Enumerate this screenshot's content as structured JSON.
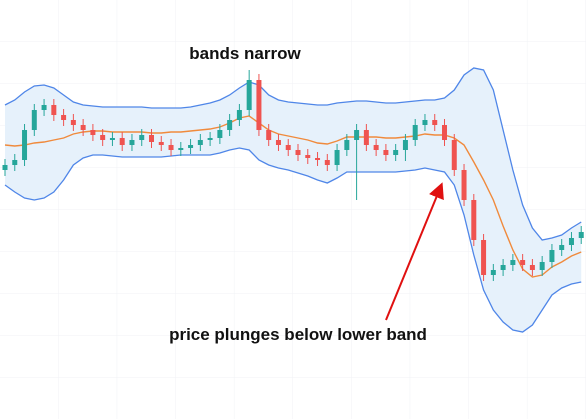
{
  "chart_data": {
    "type": "candlestick",
    "annotations": [
      {
        "text": "bands narrow"
      },
      {
        "text": "price plunges below lower band"
      }
    ],
    "ylim": [
      0,
      420
    ],
    "up_color": "#26a69a",
    "down_color": "#ef5350",
    "open": [
      250,
      255,
      260,
      290,
      310,
      315,
      305,
      300,
      295,
      290,
      285,
      280,
      282,
      275,
      280,
      285,
      278,
      275,
      270,
      272,
      275,
      280,
      282,
      290,
      300,
      310,
      340,
      290,
      280,
      275,
      270,
      265,
      262,
      260,
      255,
      270,
      280,
      290,
      275,
      270,
      265,
      270,
      280,
      295,
      300,
      295,
      280,
      250,
      220,
      180,
      145,
      150,
      155,
      160,
      155,
      150,
      158,
      170,
      175,
      182
    ],
    "high": [
      261,
      266,
      296,
      316,
      321,
      321,
      311,
      306,
      301,
      296,
      291,
      288,
      288,
      286,
      291,
      291,
      284,
      281,
      278,
      281,
      286,
      288,
      296,
      306,
      316,
      350,
      346,
      296,
      286,
      281,
      276,
      271,
      268,
      266,
      276,
      286,
      296,
      296,
      281,
      276,
      276,
      286,
      301,
      306,
      306,
      301,
      286,
      256,
      226,
      186,
      156,
      161,
      166,
      166,
      161,
      164,
      176,
      181,
      188,
      194
    ],
    "low": [
      244,
      249,
      254,
      284,
      304,
      299,
      294,
      289,
      284,
      279,
      274,
      274,
      269,
      269,
      274,
      272,
      269,
      264,
      264,
      266,
      269,
      274,
      276,
      284,
      294,
      304,
      284,
      274,
      269,
      264,
      259,
      256,
      254,
      249,
      249,
      264,
      220,
      269,
      264,
      259,
      259,
      259,
      274,
      289,
      289,
      274,
      244,
      214,
      174,
      139,
      139,
      144,
      149,
      149,
      144,
      144,
      152,
      164,
      169,
      176
    ],
    "close": [
      255,
      260,
      290,
      310,
      315,
      305,
      300,
      295,
      290,
      285,
      280,
      282,
      275,
      280,
      285,
      278,
      275,
      270,
      272,
      275,
      280,
      282,
      290,
      300,
      310,
      340,
      290,
      280,
      275,
      270,
      265,
      262,
      260,
      255,
      270,
      280,
      290,
      275,
      270,
      265,
      270,
      280,
      295,
      300,
      295,
      280,
      250,
      220,
      180,
      145,
      150,
      155,
      160,
      155,
      150,
      158,
      170,
      175,
      182,
      188
    ],
    "bands": {
      "fill": "#e6f1fb",
      "upper": {
        "color": "#4f86e8",
        "values": [
          315,
          320,
          328,
          334,
          335,
          332,
          325,
          318,
          315,
          314,
          313,
          313,
          313,
          313,
          313,
          312,
          312,
          312,
          312,
          313,
          315,
          317,
          320,
          325,
          332,
          338,
          335,
          325,
          320,
          318,
          317,
          316,
          315,
          315,
          317,
          318,
          319,
          319,
          318,
          317,
          317,
          318,
          319,
          320,
          320,
          322,
          330,
          345,
          352,
          350,
          330,
          290,
          250,
          215,
          192,
          180,
          182,
          185,
          192,
          198
        ]
      },
      "middle": {
        "color": "#f08a3c",
        "values": [
          275,
          274,
          275,
          277,
          278,
          280,
          282,
          286,
          288,
          289,
          289,
          288,
          288,
          288,
          288,
          287,
          287,
          288,
          288,
          289,
          290,
          291,
          293,
          297,
          302,
          304,
          297,
          290,
          286,
          284,
          282,
          280,
          277,
          276,
          279,
          283,
          283,
          283,
          283,
          282,
          282,
          283,
          284,
          286,
          285,
          285,
          282,
          275,
          258,
          240,
          220,
          194,
          170,
          151,
          143,
          145,
          153,
          158,
          164,
          168
        ]
      },
      "lower": {
        "color": "#4f86e8",
        "values": [
          235,
          228,
          222,
          220,
          222,
          228,
          240,
          255,
          262,
          265,
          265,
          264,
          263,
          263,
          263,
          263,
          263,
          264,
          265,
          265,
          265,
          265,
          267,
          270,
          272,
          270,
          260,
          255,
          252,
          250,
          247,
          244,
          240,
          237,
          242,
          248,
          248,
          248,
          248,
          248,
          248,
          249,
          250,
          252,
          250,
          248,
          235,
          205,
          165,
          130,
          110,
          98,
          90,
          88,
          95,
          110,
          125,
          132,
          136,
          138
        ]
      }
    }
  }
}
